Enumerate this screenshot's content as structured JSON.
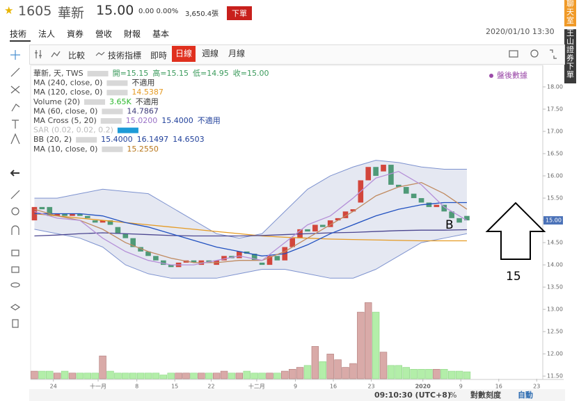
{
  "header": {
    "symbol": "1605",
    "name": "華新",
    "price": "15.00",
    "change": "0.00 0.00%",
    "volume": "3,650.4張",
    "order_button": "下單"
  },
  "tabs": [
    "技術",
    "法人",
    "資券",
    "營收",
    "財報",
    "基本"
  ],
  "datetime": "2020/01/10 13:30",
  "side": {
    "chat": "聊天室",
    "broker": "王山證券下單"
  },
  "toolbar": {
    "compare": "比較",
    "indicators": "技術指標",
    "realtime": "即時",
    "periods": [
      "日線",
      "週線",
      "月線"
    ],
    "active_period": 0
  },
  "legend": [
    {
      "label": "華新, 天, TWS",
      "values": [
        {
          "text": "開=15.15",
          "color": "#3a9a5b"
        },
        {
          "text": "高=15.15",
          "color": "#3a9a5b"
        },
        {
          "text": "低=14.95",
          "color": "#3a9a5b"
        },
        {
          "text": "收=15.00",
          "color": "#3a9a5b"
        }
      ]
    },
    {
      "label": "MA (240, close, 0)",
      "values": [
        {
          "text": "不適用",
          "color": "#333333"
        }
      ]
    },
    {
      "label": "MA (120, close, 0)",
      "values": [
        {
          "text": "14.5387",
          "color": "#e59a22"
        }
      ]
    },
    {
      "label": "Volume (20)",
      "values": [
        {
          "text": "3.65K",
          "color": "#2db82d"
        },
        {
          "text": "不適用",
          "color": "#333333"
        }
      ]
    },
    {
      "label": "MA (60, close, 0)",
      "values": [
        {
          "text": "14.7867",
          "color": "#3c3a78"
        }
      ]
    },
    {
      "label": "MA Cross (5, 20)",
      "values": [
        {
          "text": "15.0200",
          "color": "#9a72c8"
        },
        {
          "text": "15.4000",
          "color": "#1f3f9a"
        },
        {
          "text": "不適用",
          "color": "#1f3f9a"
        }
      ]
    },
    {
      "label": "SAR (0.02, 0.02, 0.2)",
      "values": []
    },
    {
      "label": "BB (20, 2)",
      "values": [
        {
          "text": "15.4000",
          "color": "#1f3f9a"
        },
        {
          "text": "16.1497",
          "color": "#1f3f9a"
        },
        {
          "text": "14.6503",
          "color": "#1f3f9a"
        }
      ]
    },
    {
      "label": "MA (10, close, 0)",
      "values": [
        {
          "text": "15.2550",
          "color": "#b8761a"
        }
      ]
    }
  ],
  "after_hours": "盤後數據",
  "bottom": {
    "time": "09:10:30 (UTC+8)",
    "percent": "%",
    "log": "對數刻度",
    "auto": "自動"
  },
  "chart_data": {
    "type": "candlestick",
    "ylim": [
      11.44,
      18.5
    ],
    "yticks": [
      {
        "value": 18,
        "label": "18.00"
      },
      {
        "value": 17.5,
        "label": "17.50"
      },
      {
        "value": 17,
        "label": "17.00"
      },
      {
        "value": 16.5,
        "label": "16.50"
      },
      {
        "value": 16,
        "label": "16.00"
      },
      {
        "value": 15.5,
        "label": "15.50"
      },
      {
        "value": 15,
        "label": "15.00"
      },
      {
        "value": 14.5,
        "label": "14.50"
      },
      {
        "value": 14,
        "label": "14.00"
      },
      {
        "value": 13.5,
        "label": "13.50"
      },
      {
        "value": 13,
        "label": "13.00"
      },
      {
        "value": 12.5,
        "label": "12.50"
      },
      {
        "value": 12,
        "label": "12.00"
      },
      {
        "value": 11.5,
        "label": "11.50"
      }
    ],
    "xlim": [
      -0.5,
      67
    ],
    "xticks": [
      {
        "value": 2.5,
        "label": "24"
      },
      {
        "value": 8.4,
        "label": "十一月"
      },
      {
        "value": 13.5,
        "label": "8"
      },
      {
        "value": 18.5,
        "label": "15"
      },
      {
        "value": 23.3,
        "label": "22"
      },
      {
        "value": 29.3,
        "label": "十二月"
      },
      {
        "value": 34.4,
        "label": "9"
      },
      {
        "value": 39.4,
        "label": "16"
      },
      {
        "value": 44.4,
        "label": "23"
      },
      {
        "value": 51.2,
        "label": "2020"
      },
      {
        "value": 56.2,
        "label": "9"
      },
      {
        "value": 61.2,
        "label": "16"
      },
      {
        "value": 66.2,
        "label": "23"
      }
    ],
    "up_color": "#d2463c",
    "down_color": "#4f9a78",
    "open": [
      15.0,
      15.3,
      15.3,
      15.1,
      15.15,
      15.1,
      15.15,
      15.1,
      15.0,
      14.95,
      15.0,
      14.85,
      14.7,
      14.6,
      14.4,
      14.3,
      14.2,
      14.1,
      14.0,
      13.95,
      14.05,
      14.1,
      14.0,
      14.1,
      14.0,
      14.1,
      14.2,
      14.15,
      14.3,
      14.25,
      14.05,
      14.0,
      14.2,
      14.1,
      14.4,
      14.6,
      14.8,
      14.75,
      14.9,
      14.85,
      15.0,
      15.05,
      15.2,
      15.4,
      15.9,
      16.2,
      16.1,
      16.25,
      15.8,
      15.75,
      15.6,
      15.5,
      15.4,
      15.3,
      15.35,
      15.2,
      15.05,
      15.1
    ],
    "close": [
      15.3,
      15.25,
      15.1,
      15.15,
      15.1,
      15.15,
      15.1,
      15.05,
      14.95,
      15.0,
      14.9,
      14.7,
      14.6,
      14.4,
      14.3,
      14.2,
      14.1,
      14.0,
      13.95,
      14.05,
      14.1,
      14.05,
      14.1,
      14.05,
      14.1,
      14.2,
      14.15,
      14.3,
      14.25,
      14.1,
      14.0,
      14.2,
      14.1,
      14.4,
      14.6,
      14.8,
      14.75,
      14.9,
      14.85,
      15.0,
      15.05,
      15.2,
      15.25,
      15.9,
      16.2,
      16.0,
      16.25,
      15.8,
      15.75,
      15.6,
      15.5,
      15.4,
      15.3,
      15.35,
      15.2,
      15.05,
      14.95,
      15.0
    ],
    "volume": [
      4,
      4,
      4,
      3,
      4,
      3,
      3,
      3,
      3,
      12,
      4,
      3,
      3,
      3,
      3,
      3,
      3,
      2,
      3,
      3,
      3,
      3,
      3,
      3,
      3,
      4,
      3,
      3,
      4,
      3,
      3,
      3,
      3,
      4,
      5,
      6,
      7,
      17,
      9,
      13,
      10,
      6,
      8,
      35,
      40,
      35,
      14,
      7,
      7,
      6,
      5,
      5,
      5,
      5,
      5,
      4,
      4,
      3.65
    ],
    "vlim": [
      0,
      50
    ],
    "lines": {
      "x": [
        0,
        3,
        6,
        9,
        12,
        15,
        18,
        21,
        24,
        27,
        30,
        33,
        36,
        39,
        42,
        45,
        48,
        51,
        54,
        57
      ],
      "bb_upper": [
        15.5,
        15.5,
        15.6,
        15.7,
        15.65,
        15.6,
        15.3,
        15.0,
        14.7,
        14.6,
        14.7,
        15.2,
        15.7,
        16.0,
        16.2,
        16.35,
        16.3,
        16.2,
        16.15,
        16.15
      ],
      "bb_lower": [
        14.8,
        14.7,
        14.6,
        14.4,
        14.0,
        13.8,
        13.7,
        13.7,
        13.7,
        13.8,
        13.9,
        13.9,
        13.8,
        13.7,
        13.7,
        13.9,
        14.2,
        14.5,
        14.6,
        14.7
      ],
      "series": [
        {
          "color": "#e59a22",
          "values": [
            15.15,
            15.1,
            15.05,
            15.0,
            14.95,
            14.9,
            14.85,
            14.8,
            14.75,
            14.7,
            14.65,
            14.62,
            14.6,
            14.58,
            14.57,
            14.56,
            14.55,
            14.54,
            14.54,
            14.54
          ]
        },
        {
          "color": "#4b4690",
          "values": [
            14.65,
            14.67,
            14.7,
            14.72,
            14.7,
            14.68,
            14.66,
            14.65,
            14.65,
            14.65,
            14.66,
            14.68,
            14.7,
            14.72,
            14.73,
            14.75,
            14.77,
            14.78,
            14.78,
            14.79
          ]
        },
        {
          "color": "#2050c0",
          "values": [
            15.15,
            15.15,
            15.15,
            15.1,
            14.95,
            14.85,
            14.7,
            14.55,
            14.4,
            14.3,
            14.2,
            14.25,
            14.45,
            14.7,
            14.9,
            15.1,
            15.25,
            15.35,
            15.4,
            15.4
          ]
        },
        {
          "color": "#c08a60",
          "values": [
            15.25,
            15.1,
            15.0,
            14.8,
            14.5,
            14.3,
            14.15,
            14.05,
            14.05,
            14.1,
            14.1,
            14.3,
            14.6,
            14.9,
            15.2,
            15.55,
            15.75,
            15.85,
            15.6,
            15.25
          ]
        },
        {
          "color": "#b590d8",
          "values": [
            15.2,
            15.05,
            15.0,
            14.6,
            14.3,
            14.1,
            14.0,
            14.0,
            14.1,
            14.2,
            14.1,
            14.5,
            14.9,
            15.1,
            15.5,
            15.95,
            16.1,
            15.8,
            15.3,
            15.0
          ]
        }
      ]
    },
    "current_price": {
      "value": 15,
      "label": "15.00"
    },
    "annotations": [
      "B",
      "15"
    ]
  }
}
